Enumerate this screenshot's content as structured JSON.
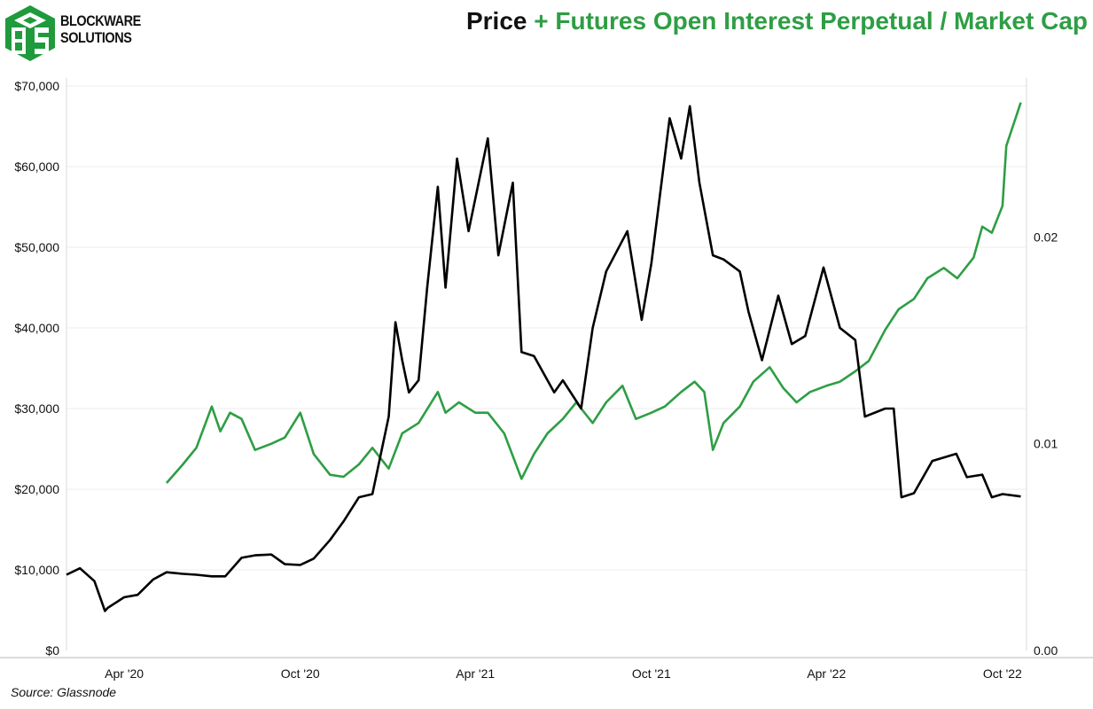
{
  "brand": {
    "line1": "BLOCKWARE",
    "line2": "SOLUTIONS"
  },
  "title": {
    "part1": "Price",
    "part2": "+ Futures Open Interest Perpetual / Market Cap"
  },
  "source": "Source: Glassnode",
  "colors": {
    "price": "#000000",
    "ratio": "#2e9e44",
    "brand_green": "#1f9a3c"
  },
  "chart_data": {
    "type": "line",
    "title": "Price + Futures Open Interest Perpetual / Market Cap",
    "xlim": [
      "2020-02-01",
      "2022-10-26"
    ],
    "x_ticks": [
      {
        "date": "2020-04-01",
        "label": "Apr '20"
      },
      {
        "date": "2020-10-01",
        "label": "Oct '20"
      },
      {
        "date": "2021-04-01",
        "label": "Apr '21"
      },
      {
        "date": "2021-10-01",
        "label": "Oct '21"
      },
      {
        "date": "2022-04-01",
        "label": "Apr '22"
      },
      {
        "date": "2022-10-01",
        "label": "Oct '22"
      }
    ],
    "y_left": {
      "lim": [
        0,
        70000
      ],
      "ticks": [
        0,
        10000,
        20000,
        30000,
        40000,
        50000,
        60000,
        70000
      ],
      "labels": [
        "$0",
        "$10,000",
        "$20,000",
        "$30,000",
        "$40,000",
        "$50,000",
        "$60,000",
        "$70,000"
      ]
    },
    "y_right": {
      "lim": [
        0,
        0.0273
      ],
      "ticks": [
        0,
        0.01,
        0.02
      ],
      "labels": [
        "0.00",
        "0.01",
        "0.02"
      ]
    },
    "grid": true,
    "series": [
      {
        "name": "Price",
        "axis": "left",
        "color": "#000000",
        "points": [
          [
            "2020-02-01",
            9400
          ],
          [
            "2020-02-15",
            10200
          ],
          [
            "2020-03-01",
            8600
          ],
          [
            "2020-03-12",
            4900
          ],
          [
            "2020-03-15",
            5300
          ],
          [
            "2020-04-01",
            6600
          ],
          [
            "2020-04-15",
            6900
          ],
          [
            "2020-05-01",
            8800
          ],
          [
            "2020-05-15",
            9700
          ],
          [
            "2020-06-01",
            9500
          ],
          [
            "2020-06-15",
            9400
          ],
          [
            "2020-07-01",
            9200
          ],
          [
            "2020-07-15",
            9200
          ],
          [
            "2020-08-01",
            11500
          ],
          [
            "2020-08-15",
            11800
          ],
          [
            "2020-09-01",
            11900
          ],
          [
            "2020-09-15",
            10700
          ],
          [
            "2020-10-01",
            10600
          ],
          [
            "2020-10-15",
            11400
          ],
          [
            "2020-11-01",
            13700
          ],
          [
            "2020-11-15",
            16000
          ],
          [
            "2020-12-01",
            19000
          ],
          [
            "2020-12-15",
            19400
          ],
          [
            "2021-01-01",
            29000
          ],
          [
            "2021-01-08",
            40700
          ],
          [
            "2021-01-15",
            36000
          ],
          [
            "2021-01-22",
            32000
          ],
          [
            "2021-02-01",
            33500
          ],
          [
            "2021-02-10",
            45000
          ],
          [
            "2021-02-21",
            57500
          ],
          [
            "2021-03-01",
            45000
          ],
          [
            "2021-03-13",
            61000
          ],
          [
            "2021-03-25",
            52000
          ],
          [
            "2021-04-14",
            63500
          ],
          [
            "2021-04-25",
            49000
          ],
          [
            "2021-05-10",
            58000
          ],
          [
            "2021-05-19",
            37000
          ],
          [
            "2021-06-01",
            36500
          ],
          [
            "2021-06-22",
            32000
          ],
          [
            "2021-07-01",
            33500
          ],
          [
            "2021-07-20",
            30000
          ],
          [
            "2021-08-01",
            40000
          ],
          [
            "2021-08-15",
            47000
          ],
          [
            "2021-09-06",
            52000
          ],
          [
            "2021-09-21",
            41000
          ],
          [
            "2021-10-01",
            48000
          ],
          [
            "2021-10-20",
            66000
          ],
          [
            "2021-11-01",
            61000
          ],
          [
            "2021-11-10",
            67500
          ],
          [
            "2021-11-20",
            58000
          ],
          [
            "2021-12-04",
            49000
          ],
          [
            "2021-12-15",
            48500
          ],
          [
            "2022-01-01",
            47000
          ],
          [
            "2022-01-10",
            42000
          ],
          [
            "2022-01-24",
            36000
          ],
          [
            "2022-02-10",
            44000
          ],
          [
            "2022-02-24",
            38000
          ],
          [
            "2022-03-10",
            39000
          ],
          [
            "2022-03-29",
            47500
          ],
          [
            "2022-04-15",
            40000
          ],
          [
            "2022-05-01",
            38500
          ],
          [
            "2022-05-11",
            29000
          ],
          [
            "2022-06-01",
            30000
          ],
          [
            "2022-06-10",
            30000
          ],
          [
            "2022-06-18",
            19000
          ],
          [
            "2022-07-01",
            19500
          ],
          [
            "2022-07-20",
            23500
          ],
          [
            "2022-08-14",
            24400
          ],
          [
            "2022-08-25",
            21500
          ],
          [
            "2022-09-10",
            21800
          ],
          [
            "2022-09-20",
            19000
          ],
          [
            "2022-10-01",
            19400
          ],
          [
            "2022-10-20",
            19100
          ]
        ]
      },
      {
        "name": "Futures Open Interest Perpetual / Market Cap",
        "axis": "right",
        "color": "#2e9e44",
        "points": [
          [
            "2020-05-15",
            0.0081
          ],
          [
            "2020-06-01",
            0.009
          ],
          [
            "2020-06-15",
            0.0098
          ],
          [
            "2020-07-01",
            0.0118
          ],
          [
            "2020-07-10",
            0.0106
          ],
          [
            "2020-07-20",
            0.0115
          ],
          [
            "2020-08-01",
            0.0112
          ],
          [
            "2020-08-15",
            0.0097
          ],
          [
            "2020-09-01",
            0.01
          ],
          [
            "2020-09-15",
            0.0103
          ],
          [
            "2020-10-01",
            0.0115
          ],
          [
            "2020-10-15",
            0.0095
          ],
          [
            "2020-11-01",
            0.0085
          ],
          [
            "2020-11-15",
            0.0084
          ],
          [
            "2020-12-01",
            0.009
          ],
          [
            "2020-12-15",
            0.0098
          ],
          [
            "2021-01-01",
            0.0088
          ],
          [
            "2021-01-15",
            0.0105
          ],
          [
            "2021-02-01",
            0.011
          ],
          [
            "2021-02-21",
            0.0125
          ],
          [
            "2021-03-01",
            0.0115
          ],
          [
            "2021-03-15",
            0.012
          ],
          [
            "2021-04-01",
            0.0115
          ],
          [
            "2021-04-14",
            0.0115
          ],
          [
            "2021-05-01",
            0.0105
          ],
          [
            "2021-05-19",
            0.0083
          ],
          [
            "2021-06-01",
            0.0095
          ],
          [
            "2021-06-15",
            0.0105
          ],
          [
            "2021-07-01",
            0.0112
          ],
          [
            "2021-07-15",
            0.012
          ],
          [
            "2021-08-01",
            0.011
          ],
          [
            "2021-08-15",
            0.012
          ],
          [
            "2021-09-01",
            0.0128
          ],
          [
            "2021-09-15",
            0.0112
          ],
          [
            "2021-10-01",
            0.0115
          ],
          [
            "2021-10-15",
            0.0118
          ],
          [
            "2021-11-01",
            0.0125
          ],
          [
            "2021-11-15",
            0.013
          ],
          [
            "2021-11-25",
            0.0125
          ],
          [
            "2021-12-04",
            0.0097
          ],
          [
            "2021-12-15",
            0.011
          ],
          [
            "2022-01-01",
            0.0118
          ],
          [
            "2022-01-15",
            0.013
          ],
          [
            "2022-02-01",
            0.0137
          ],
          [
            "2022-02-15",
            0.0127
          ],
          [
            "2022-03-01",
            0.012
          ],
          [
            "2022-03-15",
            0.0125
          ],
          [
            "2022-04-01",
            0.0128
          ],
          [
            "2022-04-15",
            0.013
          ],
          [
            "2022-05-01",
            0.0135
          ],
          [
            "2022-05-15",
            0.014
          ],
          [
            "2022-06-01",
            0.0155
          ],
          [
            "2022-06-15",
            0.0165
          ],
          [
            "2022-07-01",
            0.017
          ],
          [
            "2022-07-15",
            0.018
          ],
          [
            "2022-08-01",
            0.0185
          ],
          [
            "2022-08-15",
            0.018
          ],
          [
            "2022-09-01",
            0.019
          ],
          [
            "2022-09-10",
            0.0205
          ],
          [
            "2022-09-20",
            0.0202
          ],
          [
            "2022-10-01",
            0.0215
          ],
          [
            "2022-10-05",
            0.0244
          ],
          [
            "2022-10-15",
            0.0258
          ],
          [
            "2022-10-20",
            0.0265
          ]
        ]
      }
    ]
  }
}
